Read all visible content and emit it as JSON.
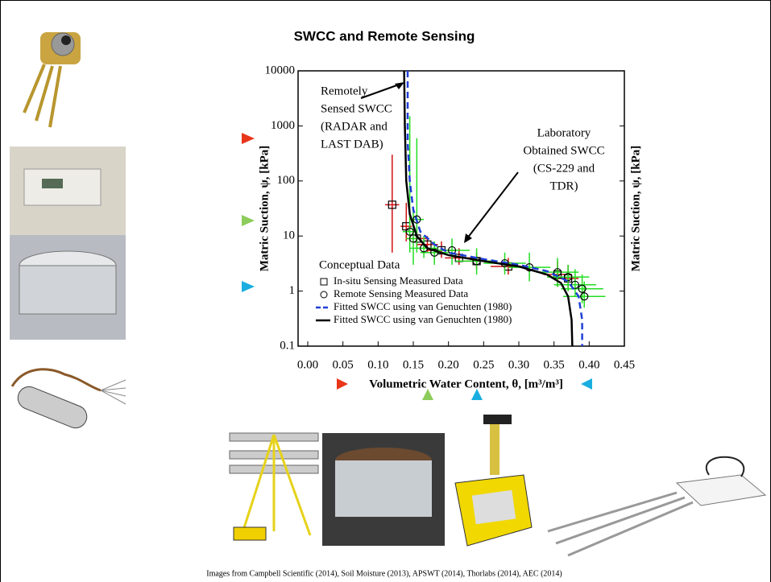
{
  "chart_data": {
    "type": "scatter",
    "title": "SWCC and Remote Sensing",
    "x_label": "Volumetric Water Content, θ, [m³/m³]",
    "y_label": "Matric Suction, ψ, [kPa]",
    "y2_label": "Matric Suction, ψ, [kPa]",
    "xlim": [
      0,
      0.45
    ],
    "xticks": [
      {
        "value": 0,
        "label": "0.00"
      },
      0.05,
      {
        "value": 0.1,
        "label": "0.10"
      },
      0.15,
      {
        "value": 0.2,
        "label": "0.20"
      },
      0.25,
      {
        "value": 0.3,
        "label": "0.30"
      },
      0.35,
      {
        "value": 0.4,
        "label": "0.40"
      },
      0.45
    ],
    "ylim": [
      0.1,
      10000
    ],
    "yticks": [
      0.1,
      1,
      10,
      100,
      1000,
      10000
    ],
    "y_scale": "log",
    "legend": "lower left",
    "legend_title": "Conceptual Data",
    "annotations": [
      {
        "lines": [
          "Remotely",
          "Sensed SWCC",
          "(RADAR and",
          "LAST DAB)"
        ]
      },
      {
        "lines": [
          "Laboratory",
          "Obtained SWCC",
          "(CS-229 and",
          "TDR)"
        ]
      }
    ],
    "series": [
      {
        "name": "In-situ Sensing Measured Data",
        "type": "scatter",
        "marker": "square",
        "color": "#d01010",
        "x": [
          0.12,
          0.14,
          0.155,
          0.17,
          0.19,
          0.215,
          0.24,
          0.285,
          0.355,
          0.37
        ],
        "values": [
          37,
          15,
          9,
          7,
          5.5,
          4,
          3.5,
          2.8,
          2,
          1.7
        ],
        "y_low": [
          5,
          8,
          6,
          5,
          4,
          3,
          2.5,
          2,
          1.2,
          1
        ],
        "y_high": [
          300,
          40,
          14,
          10,
          8,
          6,
          5,
          4,
          3.5,
          3
        ],
        "x_err": [
          0.01,
          0.008,
          0.015,
          0.015,
          0.02,
          0.02,
          0.02,
          0.025,
          0.02,
          0.015
        ]
      },
      {
        "name": "Remote Sensing Measured Data",
        "type": "scatter",
        "marker": "circle",
        "color": "#22dd22",
        "x": [
          0.145,
          0.155,
          0.15,
          0.165,
          0.18,
          0.205,
          0.24,
          0.28,
          0.315,
          0.355,
          0.37,
          0.38,
          0.39,
          0.393
        ],
        "values": [
          12,
          20,
          9,
          6,
          5,
          5.5,
          3.5,
          3.2,
          2.7,
          2.2,
          1.8,
          1.3,
          1.1,
          0.8
        ],
        "y_low": [
          5,
          5,
          3,
          4,
          3,
          3,
          2,
          2,
          1.5,
          1.2,
          1,
          0.8,
          0.6,
          0.5
        ],
        "y_high": [
          1500,
          600,
          30,
          10,
          8,
          9,
          6,
          5,
          5,
          4,
          3,
          2.5,
          2,
          1.5
        ],
        "x_err": [
          0.01,
          0.01,
          0.01,
          0.02,
          0.02,
          0.025,
          0.03,
          0.03,
          0.03,
          0.03,
          0.03,
          0.03,
          0.03,
          0.03
        ]
      },
      {
        "name": "Fitted SWCC using van Genuchten (1980)",
        "type": "line",
        "dash": true,
        "color": "#1f3fd6",
        "x": [
          0.142,
          0.142,
          0.145,
          0.15,
          0.16,
          0.18,
          0.2,
          0.25,
          0.3,
          0.34,
          0.37,
          0.385,
          0.39,
          0.39
        ],
        "values": [
          10000,
          500,
          100,
          30,
          12,
          7,
          5,
          3.8,
          3,
          2.3,
          1.5,
          0.8,
          0.3,
          0.1
        ]
      },
      {
        "name": "Fitted SWCC using van Genuchten (1980)",
        "type": "line",
        "dash": false,
        "color": "#000000",
        "x": [
          0.137,
          0.138,
          0.14,
          0.145,
          0.155,
          0.17,
          0.2,
          0.25,
          0.3,
          0.34,
          0.36,
          0.37,
          0.375,
          0.376
        ],
        "values": [
          10000,
          1000,
          100,
          25,
          10,
          6,
          4.5,
          3.5,
          2.8,
          2,
          1.4,
          0.8,
          0.3,
          0.1
        ]
      }
    ]
  },
  "footer": "Images from Campbell Scientific (2014), Soil Moisture (2013), APSWT (2014),  Thorlabs (2014), AEC (2014)"
}
